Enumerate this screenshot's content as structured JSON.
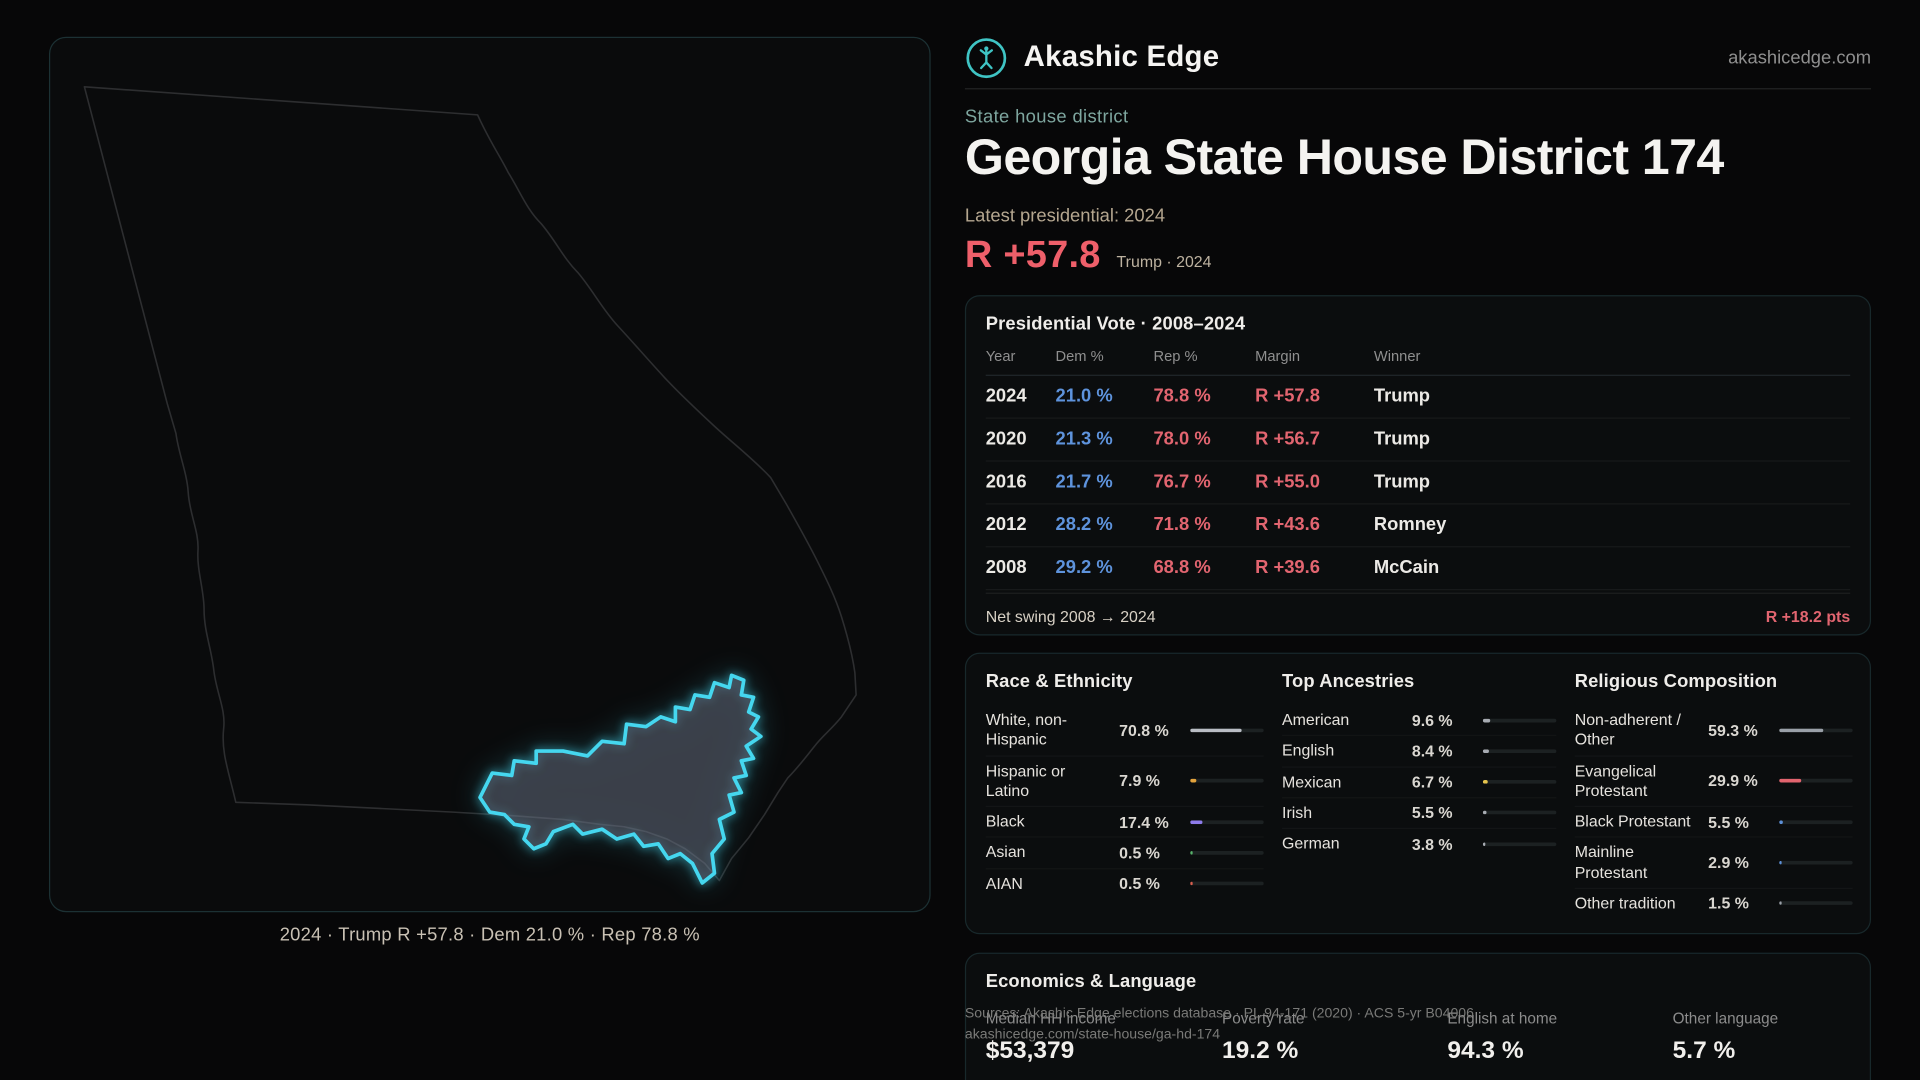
{
  "brand": {
    "name": "Akashic Edge",
    "domain": "akashicedge.com"
  },
  "page": {
    "kicker": "State house district",
    "title": "Georgia State House District 174",
    "latest_label": "Latest presidential: 2024",
    "headline_margin": "R +57.8",
    "headline_context": "Trump · 2024"
  },
  "map": {
    "caption": "2024 · Trump R +57.8 · Dem 21.0 % · Rep 78.8 %"
  },
  "presidential_vote": {
    "title": "Presidential Vote · 2008–2024",
    "columns": [
      "Year",
      "Dem %",
      "Rep %",
      "Margin",
      "Winner"
    ],
    "rows": [
      {
        "year": "2024",
        "dem": "21.0 %",
        "rep": "78.8 %",
        "margin": "R +57.8",
        "winner": "Trump"
      },
      {
        "year": "2020",
        "dem": "21.3 %",
        "rep": "78.0 %",
        "margin": "R +56.7",
        "winner": "Trump"
      },
      {
        "year": "2016",
        "dem": "21.7 %",
        "rep": "76.7 %",
        "margin": "R +55.0",
        "winner": "Trump"
      },
      {
        "year": "2012",
        "dem": "28.2 %",
        "rep": "71.8 %",
        "margin": "R +43.6",
        "winner": "Romney"
      },
      {
        "year": "2008",
        "dem": "29.2 %",
        "rep": "68.8 %",
        "margin": "R +39.6",
        "winner": "McCain"
      }
    ],
    "net_swing_label": "Net swing 2008 → 2024",
    "net_swing_value": "R +18.2 pts"
  },
  "race_ethnicity": {
    "title": "Race & Ethnicity",
    "rows": [
      {
        "label": "White, non-Hispanic",
        "value": "70.8 %",
        "pct": 70.8,
        "color": "#b9bdc4"
      },
      {
        "label": "Hispanic or Latino",
        "value": "7.9 %",
        "pct": 7.9,
        "color": "#e2a23c"
      },
      {
        "label": "Black",
        "value": "17.4 %",
        "pct": 17.4,
        "color": "#8d7bea"
      },
      {
        "label": "Asian",
        "value": "0.5 %",
        "pct": 0.5,
        "color": "#57b26a"
      },
      {
        "label": "AIAN",
        "value": "0.5 %",
        "pct": 0.5,
        "color": "#d95f4e"
      }
    ]
  },
  "ancestries": {
    "title": "Top Ancestries",
    "rows": [
      {
        "label": "American",
        "value": "9.6 %",
        "pct": 9.6,
        "color": "#a7abb2"
      },
      {
        "label": "English",
        "value": "8.4 %",
        "pct": 8.4,
        "color": "#a7abb2"
      },
      {
        "label": "Mexican",
        "value": "6.7 %",
        "pct": 6.7,
        "color": "#e5c44d"
      },
      {
        "label": "Irish",
        "value": "5.5 %",
        "pct": 5.5,
        "color": "#a7abb2"
      },
      {
        "label": "German",
        "value": "3.8 %",
        "pct": 3.8,
        "color": "#a7abb2"
      }
    ]
  },
  "religion": {
    "title": "Religious Composition",
    "rows": [
      {
        "label": "Non-adherent / Other",
        "value": "59.3 %",
        "pct": 59.3,
        "color": "#9aa0a8"
      },
      {
        "label": "Evangelical Protestant",
        "value": "29.9 %",
        "pct": 29.9,
        "color": "#e2646e"
      },
      {
        "label": "Black Protestant",
        "value": "5.5 %",
        "pct": 5.5,
        "color": "#5c8fd6"
      },
      {
        "label": "Mainline Protestant",
        "value": "2.9 %",
        "pct": 2.9,
        "color": "#5c8fd6"
      },
      {
        "label": "Other tradition",
        "value": "1.5 %",
        "pct": 1.5,
        "color": "#9aa0a8"
      }
    ]
  },
  "economics": {
    "title": "Economics & Language",
    "stats": [
      {
        "label": "Median HH income",
        "value": "$53,379"
      },
      {
        "label": "Poverty rate",
        "value": "19.2 %"
      },
      {
        "label": "English at home",
        "value": "94.3 %"
      },
      {
        "label": "Other language",
        "value": "5.7 %"
      }
    ]
  },
  "footer": {
    "line1": "Sources: Akashic Edge elections database · PL 94-171 (2020) · ACS 5-yr B04006",
    "line2": "akashicedge.com/state-house/ga-hd-174"
  }
}
